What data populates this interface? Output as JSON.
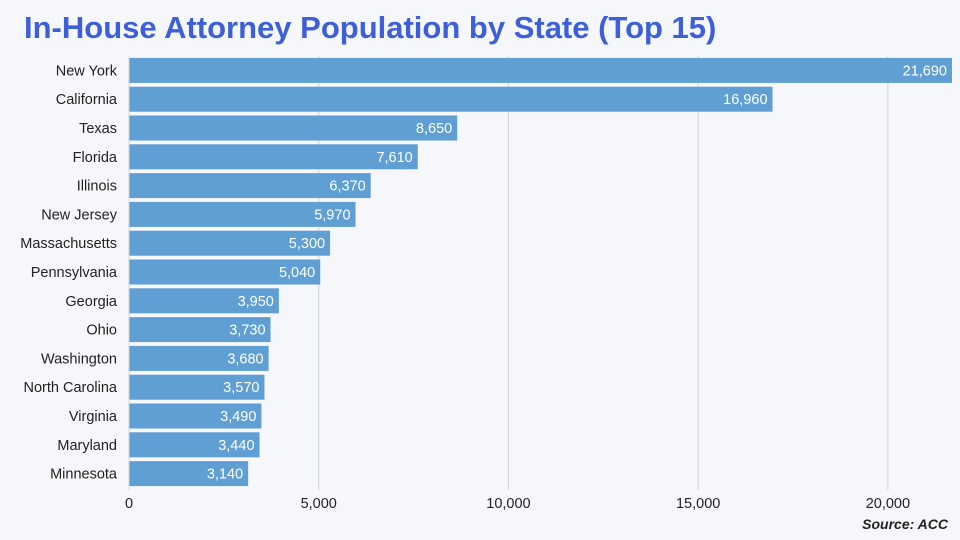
{
  "title": "In-House Attorney Population by State (Top 15)",
  "source": "Source: ACC",
  "colors": {
    "bar": "#5f9fd3",
    "grid": "#cfd3d8",
    "title": "#3d5fd9"
  },
  "chart_data": {
    "type": "bar",
    "orientation": "horizontal",
    "title": "In-House Attorney Population by State (Top 15)",
    "xlabel": "",
    "ylabel": "",
    "xlim": [
      0,
      21690
    ],
    "xticks": [
      0,
      5000,
      10000,
      15000,
      20000
    ],
    "grid": true,
    "categories": [
      "New York",
      "California",
      "Texas",
      "Florida",
      "Illinois",
      "New Jersey",
      "Massachusetts",
      "Pennsylvania",
      "Georgia",
      "Ohio",
      "Washington",
      "North Carolina",
      "Virginia",
      "Maryland",
      "Minnesota"
    ],
    "values": [
      21690,
      16960,
      8650,
      7610,
      6370,
      5970,
      5300,
      5040,
      3950,
      3730,
      3680,
      3570,
      3490,
      3440,
      3140
    ]
  }
}
